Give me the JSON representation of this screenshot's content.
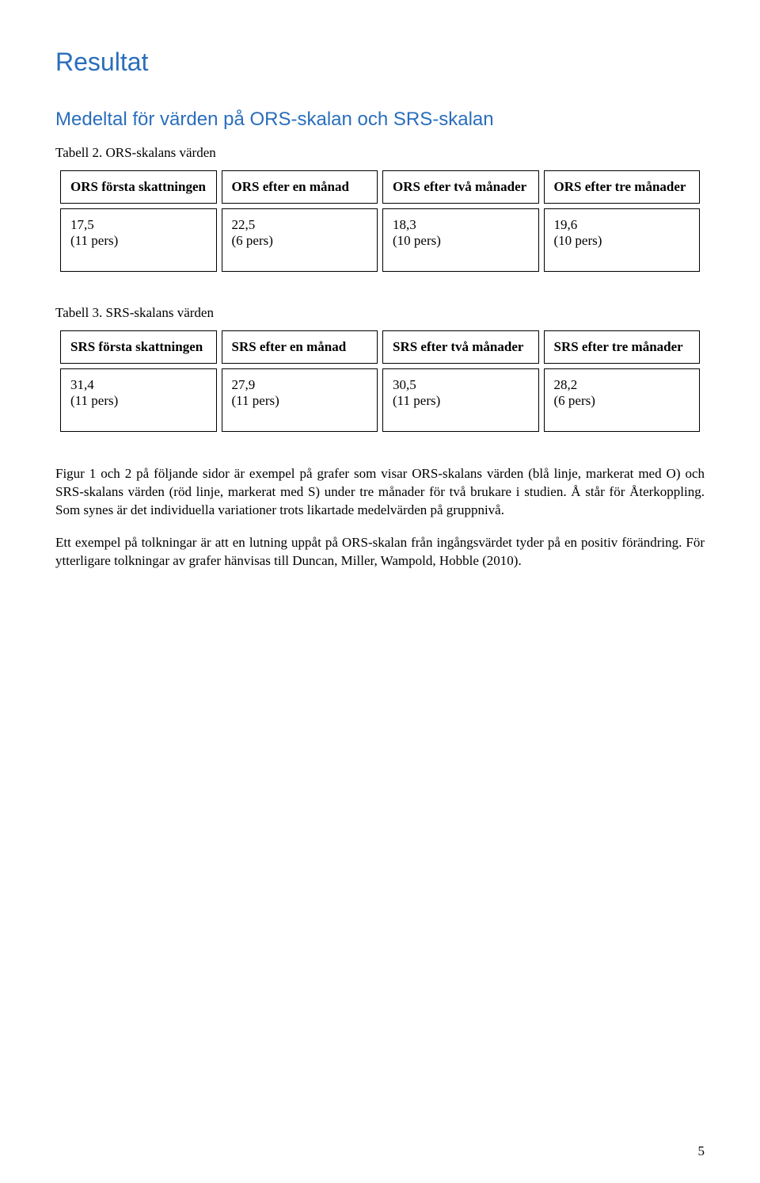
{
  "colors": {
    "accent": "#2a6ebb",
    "text": "#000000",
    "border": "#000000",
    "background": "#ffffff"
  },
  "typography": {
    "h1_fontsize": 32,
    "h2_fontsize": 24,
    "caption_fontsize": 17,
    "body_fontsize": 17,
    "cell_fontsize": 17,
    "font_serif": "Times New Roman",
    "font_sans": "Arial"
  },
  "title": "Resultat",
  "subtitle": "Medeltal för värden på ORS-skalan och SRS-skalan",
  "table2": {
    "caption": "Tabell 2. ORS-skalans värden",
    "headers": [
      "ORS första skattningen",
      "ORS efter en månad",
      "ORS efter två månader",
      "ORS efter tre månader"
    ],
    "row": [
      {
        "value": "17,5",
        "n": "(11 pers)"
      },
      {
        "value": "22,5",
        "n": "(6 pers)"
      },
      {
        "value": "18,3",
        "n": "(10 pers)"
      },
      {
        "value": "19,6",
        "n": "(10 pers)"
      }
    ]
  },
  "table3": {
    "caption": "Tabell 3. SRS-skalans värden",
    "headers": [
      "SRS första skattningen",
      "SRS efter en månad",
      "SRS efter två månader",
      "SRS efter tre månader"
    ],
    "row": [
      {
        "value": "31,4",
        "n": "(11 pers)"
      },
      {
        "value": "27,9",
        "n": "(11 pers)"
      },
      {
        "value": "30,5",
        "n": "(11 pers)"
      },
      {
        "value": "28,2",
        "n": "(6 pers)"
      }
    ]
  },
  "para1": "Figur 1 och 2 på följande sidor är exempel på grafer som visar ORS-skalans värden (blå linje, markerat med O) och SRS-skalans värden (röd linje, markerat med S) under tre månader för två brukare i studien. Å står för Återkoppling. Som synes är det individuella variationer trots likartade medelvärden på gruppnivå.",
  "para2": "Ett exempel på tolkningar är att en lutning uppåt på ORS-skalan från ingångsvärdet tyder på en positiv förändring. För ytterligare tolkningar av grafer hänvisas till Duncan, Miller, Wampold, Hobble (2010).",
  "page_number": "5"
}
